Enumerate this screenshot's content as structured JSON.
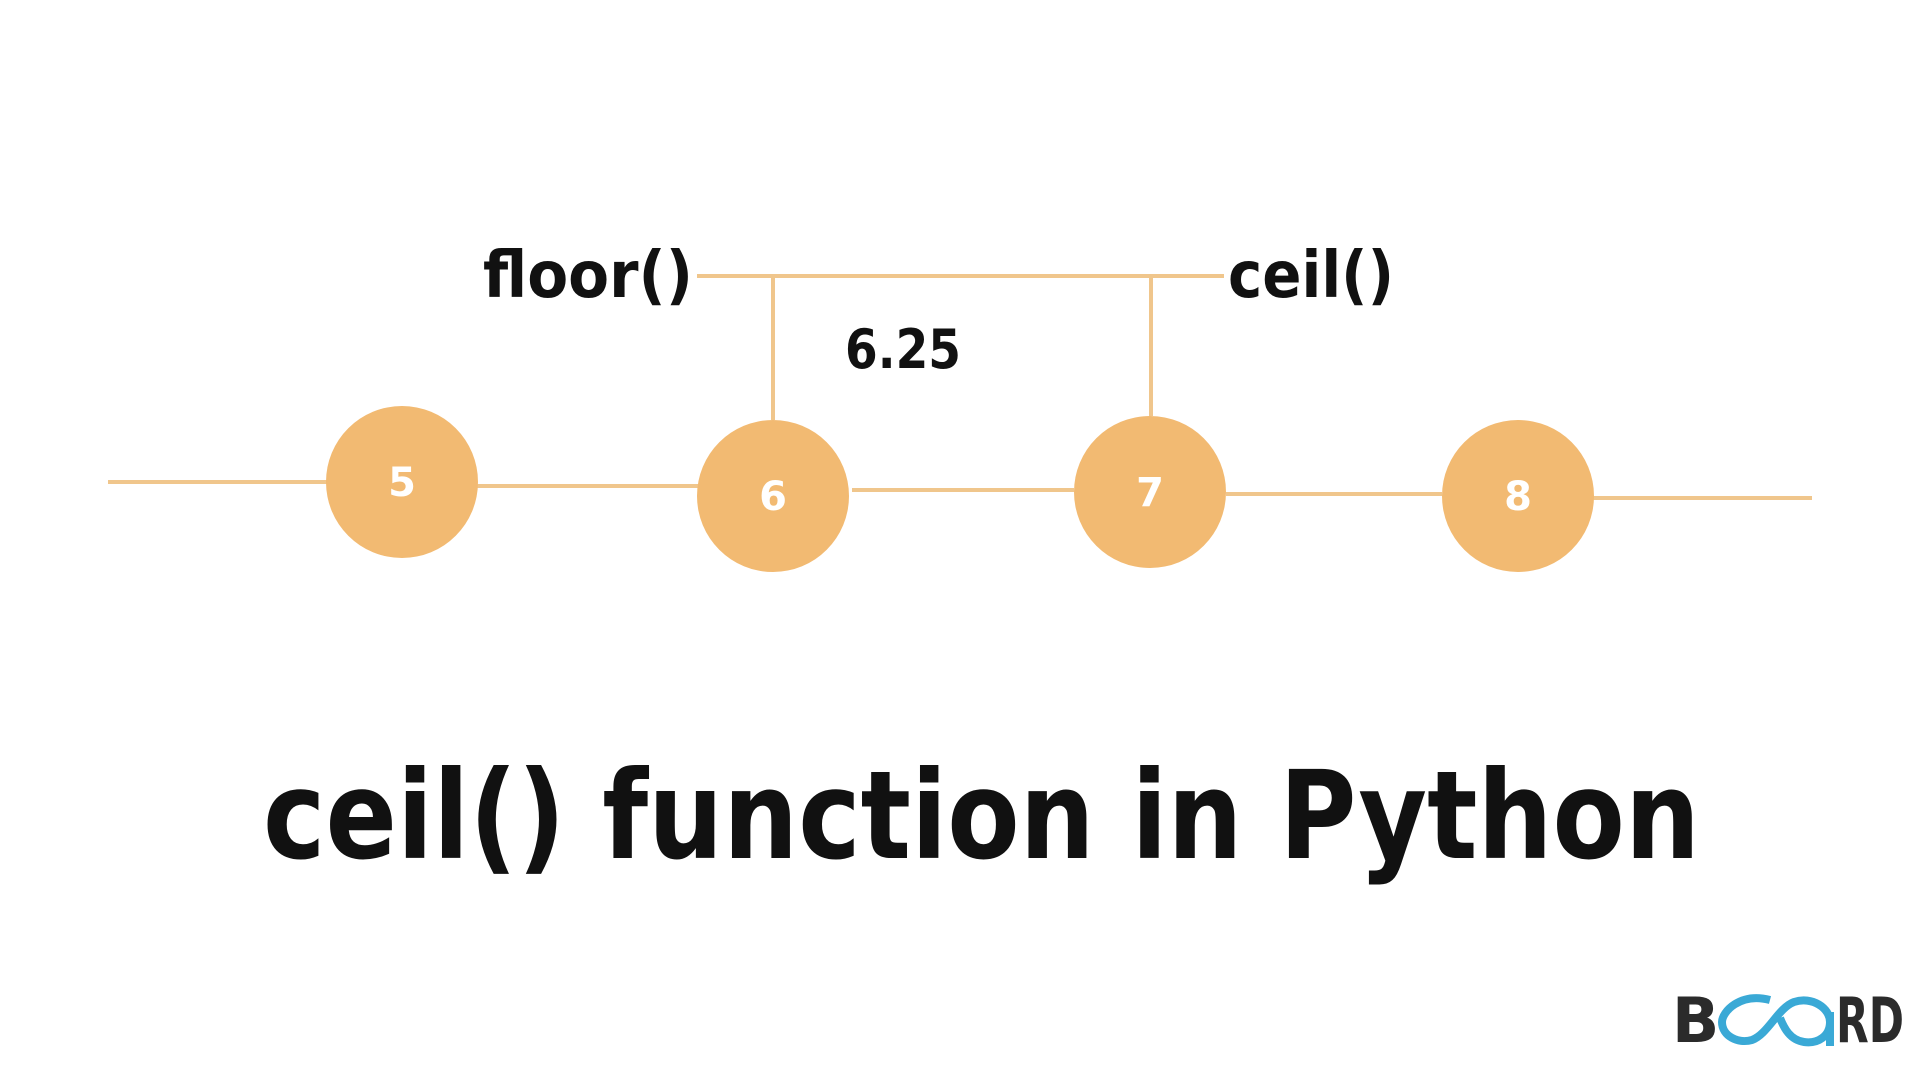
{
  "colors": {
    "circle": "#F2BA72",
    "line": "#F0C68C",
    "text": "#111111",
    "logo_dark": "#2b2b2b",
    "logo_accent": "#3aa9d6"
  },
  "diagram": {
    "nodes": [
      "5",
      "6",
      "7",
      "8"
    ],
    "floor_label": "floor()",
    "ceil_label": "ceil()",
    "value_label": "6.25"
  },
  "title": "ceil() function in Python",
  "logo": {
    "text": "BOARD"
  }
}
